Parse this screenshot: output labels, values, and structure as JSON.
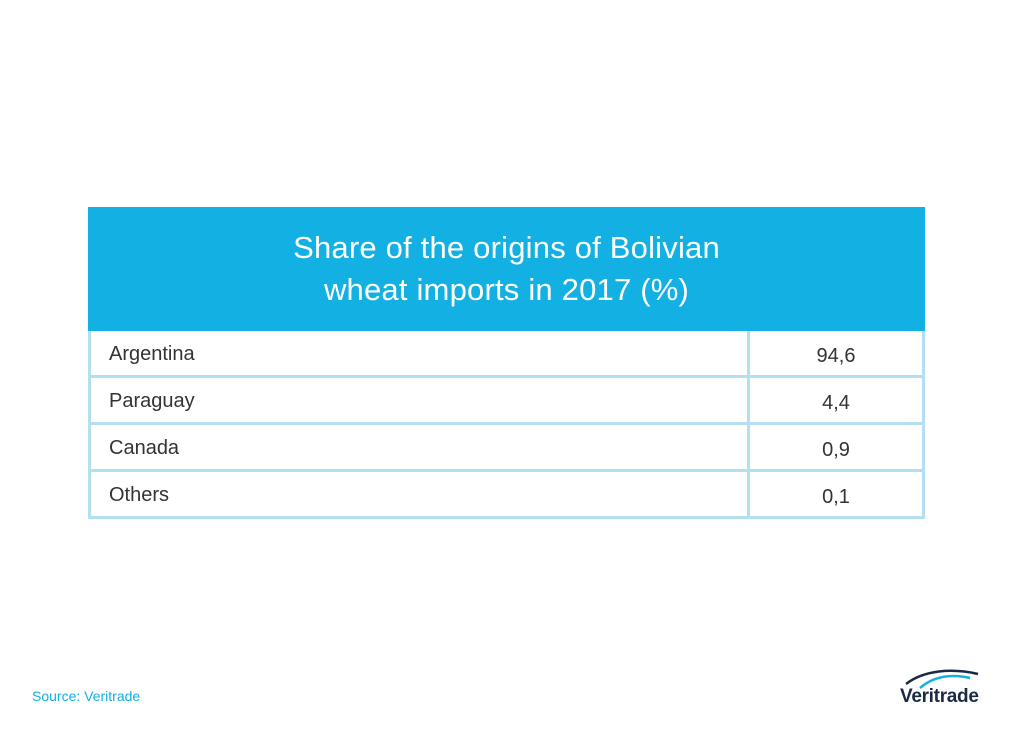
{
  "chart_data": {
    "type": "table",
    "title_lines": [
      "Share of the origins of Bolivian",
      "wheat imports in 2017 (%)"
    ],
    "rows": [
      {
        "label": "Argentina",
        "value": "94,6"
      },
      {
        "label": "Paraguay",
        "value": "4,4"
      },
      {
        "label": "Canada",
        "value": "0,9"
      },
      {
        "label": "Others",
        "value": "0,1"
      }
    ],
    "colors": {
      "header": "#12b0e3",
      "grid": "#b4dff0"
    }
  },
  "footer": {
    "source": "Source: Veritrade"
  },
  "logo": {
    "text": "Veritrade",
    "icon": "veritrade-arc-logo-icon"
  }
}
